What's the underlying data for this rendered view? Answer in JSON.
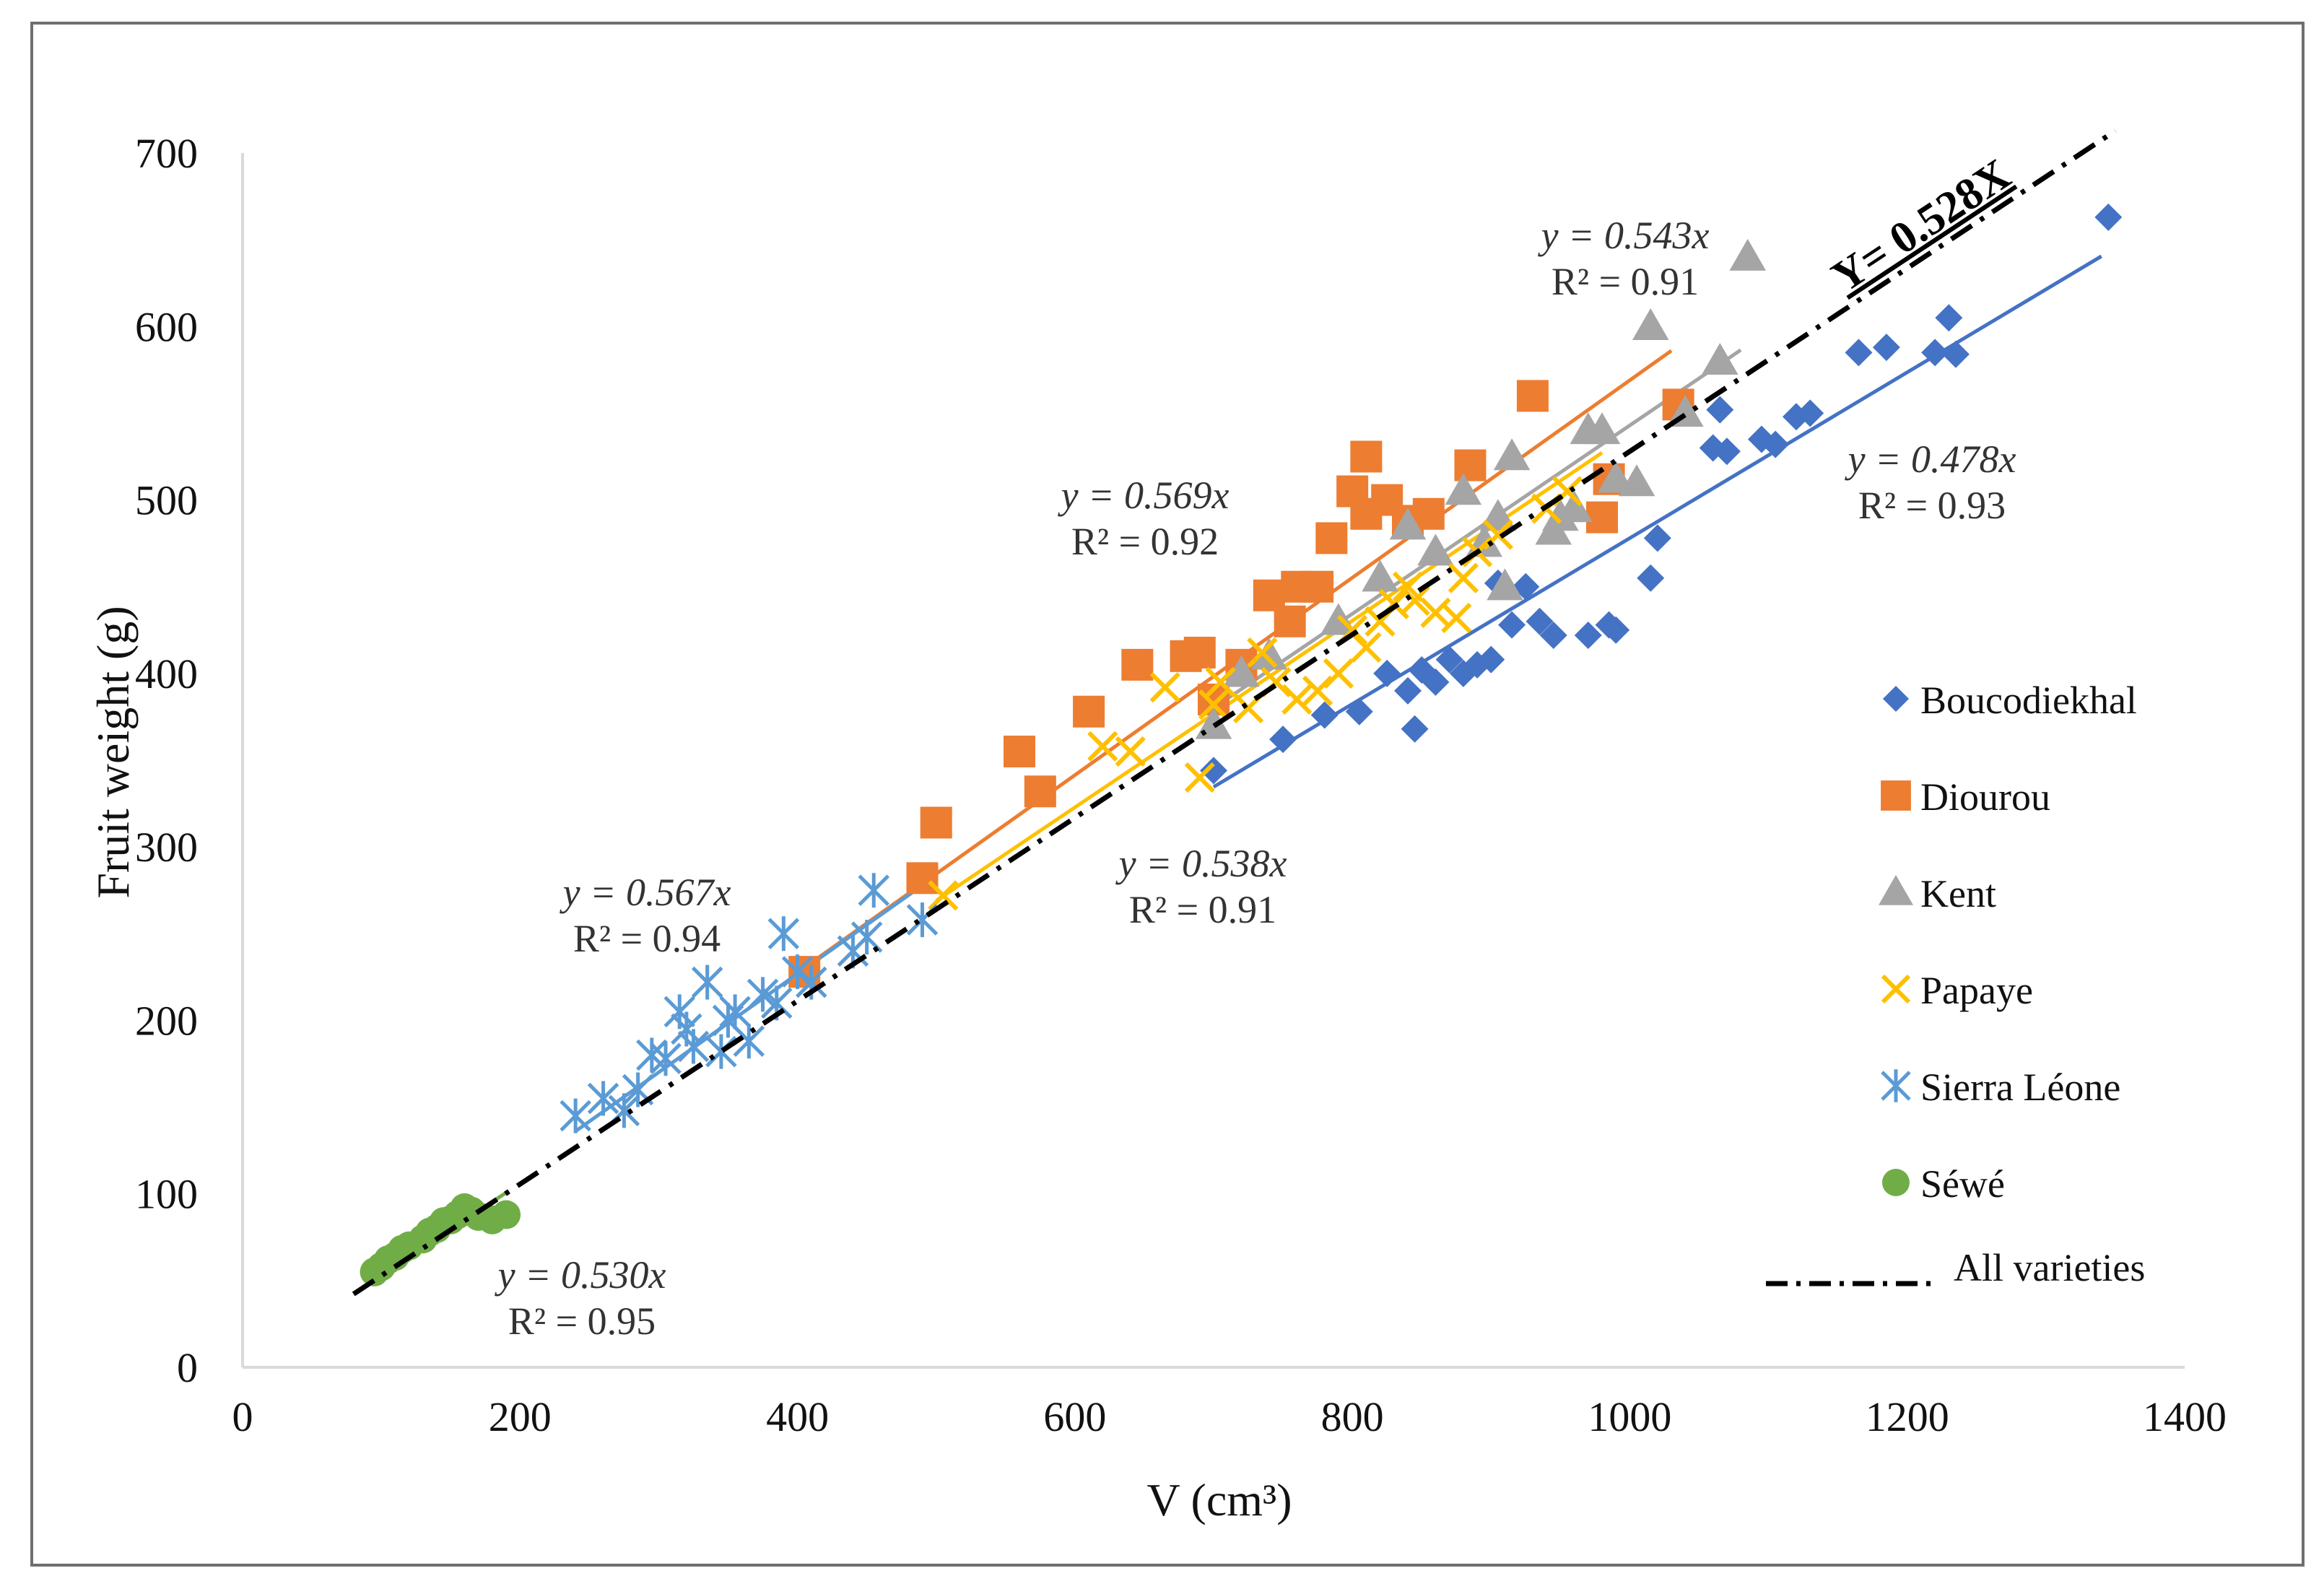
{
  "chart_data": {
    "type": "scatter",
    "xlabel": "V (cm³)",
    "ylabel": "Fruit weight (g)",
    "xlim": [
      0,
      1400
    ],
    "ylim": [
      0,
      700
    ],
    "xticks": [
      "0",
      "200",
      "400",
      "600",
      "800",
      "1000",
      "1200",
      "1400"
    ],
    "yticks": [
      "0",
      "100",
      "200",
      "300",
      "400",
      "500",
      "600",
      "700"
    ],
    "grid": false,
    "legend_position": "right",
    "series": [
      {
        "name": "Boucodiekhal",
        "marker": "diamond",
        "color": "#4472c4",
        "trend_slope": 0.478,
        "trend_x": [
          700,
          1340
        ],
        "equation": "y = 0.478x",
        "r2": "R² = 0.93",
        "points": [
          [
            700,
            344
          ],
          [
            750,
            362
          ],
          [
            780,
            376
          ],
          [
            805,
            378
          ],
          [
            825,
            400
          ],
          [
            840,
            390
          ],
          [
            845,
            368
          ],
          [
            850,
            402
          ],
          [
            860,
            395
          ],
          [
            870,
            408
          ],
          [
            880,
            400
          ],
          [
            890,
            405
          ],
          [
            900,
            408
          ],
          [
            905,
            452
          ],
          [
            915,
            428
          ],
          [
            925,
            450
          ],
          [
            935,
            430
          ],
          [
            945,
            422
          ],
          [
            970,
            422
          ],
          [
            985,
            428
          ],
          [
            990,
            425
          ],
          [
            1015,
            455
          ],
          [
            1020,
            478
          ],
          [
            1060,
            530
          ],
          [
            1065,
            552
          ],
          [
            1070,
            528
          ],
          [
            1095,
            535
          ],
          [
            1105,
            532
          ],
          [
            1120,
            548
          ],
          [
            1130,
            550
          ],
          [
            1165,
            585
          ],
          [
            1185,
            588
          ],
          [
            1220,
            585
          ],
          [
            1230,
            605
          ],
          [
            1235,
            584
          ],
          [
            1345,
            663
          ]
        ]
      },
      {
        "name": "Diourou",
        "marker": "square",
        "color": "#ed7d31",
        "trend_slope": 0.569,
        "trend_x": [
          400,
          1030
        ],
        "equation": "y = 0.569x",
        "r2": "R² = 0.92",
        "points": [
          [
            405,
            228
          ],
          [
            490,
            282
          ],
          [
            500,
            314
          ],
          [
            560,
            355
          ],
          [
            575,
            332
          ],
          [
            610,
            378
          ],
          [
            645,
            405
          ],
          [
            680,
            410
          ],
          [
            690,
            412
          ],
          [
            700,
            385
          ],
          [
            720,
            405
          ],
          [
            740,
            445
          ],
          [
            755,
            430
          ],
          [
            760,
            450
          ],
          [
            775,
            450
          ],
          [
            785,
            478
          ],
          [
            800,
            505
          ],
          [
            810,
            525
          ],
          [
            810,
            492
          ],
          [
            825,
            500
          ],
          [
            840,
            488
          ],
          [
            855,
            492
          ],
          [
            885,
            520
          ],
          [
            930,
            560
          ],
          [
            980,
            490
          ],
          [
            985,
            512
          ],
          [
            1035,
            555
          ]
        ]
      },
      {
        "name": "Kent",
        "marker": "triangle",
        "color": "#a5a5a5",
        "trend_slope": 0.543,
        "trend_x": [
          700,
          1080
        ],
        "equation": "y = 0.543x",
        "r2": "R² = 0.91",
        "points": [
          [
            700,
            370
          ],
          [
            720,
            400
          ],
          [
            740,
            410
          ],
          [
            790,
            430
          ],
          [
            820,
            455
          ],
          [
            840,
            485
          ],
          [
            860,
            470
          ],
          [
            880,
            505
          ],
          [
            895,
            475
          ],
          [
            905,
            490
          ],
          [
            910,
            450
          ],
          [
            915,
            525
          ],
          [
            945,
            482
          ],
          [
            950,
            490
          ],
          [
            960,
            495
          ],
          [
            970,
            540
          ],
          [
            980,
            540
          ],
          [
            990,
            512
          ],
          [
            1005,
            510
          ],
          [
            1015,
            600
          ],
          [
            1040,
            550
          ],
          [
            1065,
            580
          ],
          [
            1085,
            640
          ]
        ]
      },
      {
        "name": "Papaye",
        "marker": "x",
        "color": "#ffc000",
        "trend_slope": 0.538,
        "trend_x": [
          500,
          980
        ],
        "equation": "y = 0.538x",
        "r2": "R² = 0.91",
        "points": [
          [
            505,
            272
          ],
          [
            620,
            358
          ],
          [
            640,
            355
          ],
          [
            665,
            392
          ],
          [
            690,
            340
          ],
          [
            700,
            382
          ],
          [
            705,
            395
          ],
          [
            725,
            380
          ],
          [
            735,
            412
          ],
          [
            745,
            395
          ],
          [
            760,
            385
          ],
          [
            775,
            390
          ],
          [
            790,
            400
          ],
          [
            800,
            425
          ],
          [
            810,
            415
          ],
          [
            820,
            430
          ],
          [
            830,
            440
          ],
          [
            840,
            450
          ],
          [
            845,
            442
          ],
          [
            860,
            435
          ],
          [
            875,
            432
          ],
          [
            880,
            455
          ],
          [
            890,
            470
          ],
          [
            905,
            480
          ],
          [
            940,
            495
          ],
          [
            955,
            505
          ]
        ]
      },
      {
        "name": "Sierra Léone",
        "marker": "asterisk",
        "color": "#5b9bd5",
        "trend_slope": 0.567,
        "trend_x": [
          240,
          490
        ],
        "equation": "y = 0.567x",
        "r2": "R² = 0.94",
        "points": [
          [
            240,
            145
          ],
          [
            260,
            155
          ],
          [
            275,
            148
          ],
          [
            285,
            160
          ],
          [
            295,
            180
          ],
          [
            305,
            178
          ],
          [
            315,
            205
          ],
          [
            320,
            195
          ],
          [
            325,
            185
          ],
          [
            335,
            222
          ],
          [
            345,
            182
          ],
          [
            350,
            200
          ],
          [
            355,
            205
          ],
          [
            365,
            188
          ],
          [
            375,
            215
          ],
          [
            385,
            210
          ],
          [
            390,
            250
          ],
          [
            400,
            228
          ],
          [
            410,
            222
          ],
          [
            440,
            240
          ],
          [
            450,
            248
          ],
          [
            455,
            275
          ],
          [
            490,
            258
          ]
        ]
      },
      {
        "name": "Séwé",
        "marker": "circle",
        "color": "#70ad47",
        "trend_slope": 0.53,
        "trend_x": [
          95,
          190
        ],
        "equation": "y = 0.530x",
        "r2": "R² = 0.95",
        "points": [
          [
            95,
            55
          ],
          [
            100,
            58
          ],
          [
            105,
            62
          ],
          [
            110,
            64
          ],
          [
            115,
            68
          ],
          [
            120,
            70
          ],
          [
            130,
            74
          ],
          [
            135,
            78
          ],
          [
            140,
            80
          ],
          [
            145,
            84
          ],
          [
            150,
            85
          ],
          [
            155,
            88
          ],
          [
            160,
            92
          ],
          [
            165,
            90
          ],
          [
            170,
            87
          ],
          [
            180,
            85
          ],
          [
            190,
            88
          ]
        ]
      }
    ],
    "all_varieties": {
      "name": "All varieties",
      "slope": 0.528,
      "x_range": [
        80,
        1350
      ],
      "label": "Y= 0.528X"
    }
  }
}
